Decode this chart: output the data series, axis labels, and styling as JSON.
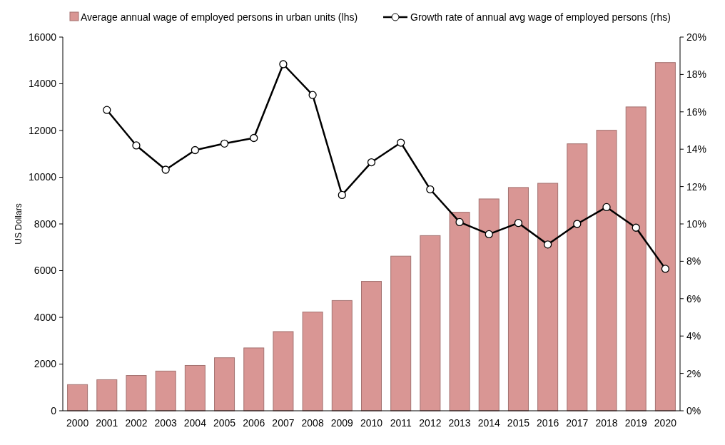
{
  "chart_data": {
    "type": "bar",
    "ylabel": "US Dollars",
    "categories": [
      "2000",
      "2001",
      "2002",
      "2003",
      "2004",
      "2005",
      "2006",
      "2007",
      "2008",
      "2009",
      "2010",
      "2011",
      "2012",
      "2013",
      "2014",
      "2015",
      "2016",
      "2017",
      "2018",
      "2019",
      "2020"
    ],
    "series": [
      {
        "name": "Average annual wage of employed persons in urban units (lhs)",
        "color": "#d99694",
        "values": [
          1120,
          1330,
          1510,
          1700,
          1940,
          2270,
          2690,
          3390,
          4230,
          4720,
          5540,
          6620,
          7500,
          8500,
          9070,
          9560,
          9740,
          11430,
          12010,
          13010,
          14910
        ]
      },
      {
        "name": "Growth rate of annual avg wage of employed persons (rhs)",
        "type": "line",
        "axis": "y2",
        "color": "#000000",
        "marker": "circle",
        "values": [
          null,
          16.1,
          14.2,
          12.9,
          13.95,
          14.3,
          14.6,
          18.55,
          16.9,
          11.55,
          13.3,
          14.35,
          11.85,
          10.1,
          9.45,
          10.05,
          8.9,
          10.0,
          10.9,
          9.8,
          7.6
        ]
      }
    ],
    "ylim": [
      0,
      16000
    ],
    "yticks": [
      0,
      2000,
      4000,
      6000,
      8000,
      10000,
      12000,
      14000,
      16000
    ],
    "y2lim": [
      0,
      20
    ],
    "y2ticks": [
      {
        "value": 0,
        "label": "0%"
      },
      {
        "value": 2,
        "label": "2%"
      },
      {
        "value": 4,
        "label": "4%"
      },
      {
        "value": 6,
        "label": "6%"
      },
      {
        "value": 8,
        "label": "8%"
      },
      {
        "value": 10,
        "label": "10%"
      },
      {
        "value": 12,
        "label": "12%"
      },
      {
        "value": 14,
        "label": "14%"
      },
      {
        "value": 16,
        "label": "16%"
      },
      {
        "value": 18,
        "label": "18%"
      },
      {
        "value": 20,
        "label": "20%"
      }
    ],
    "grid": false,
    "legend": "top"
  }
}
